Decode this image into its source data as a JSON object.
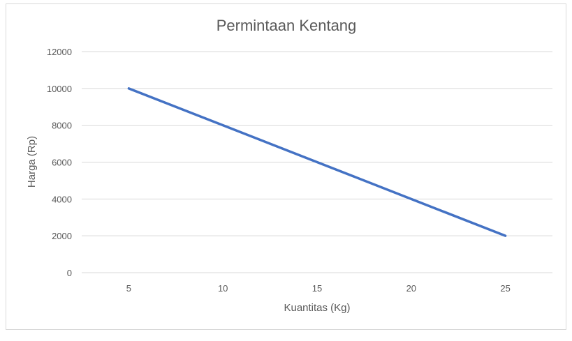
{
  "chart_data": {
    "type": "line",
    "title": "Permintaan Kentang",
    "xlabel": "Kuantitas (Kg)",
    "ylabel": "Harga (Rp)",
    "categories": [
      "5",
      "10",
      "15",
      "20",
      "25"
    ],
    "series": [
      {
        "values": [
          10000,
          8000,
          6000,
          4000,
          2000
        ]
      }
    ],
    "ylim": [
      0,
      12000
    ],
    "yticks": [
      "0",
      "2000",
      "4000",
      "6000",
      "8000",
      "10000",
      "12000"
    ],
    "grid": true,
    "legend": "none",
    "colors": {
      "line": "#4472c4",
      "grid": "#d9d9d9",
      "text": "#595959"
    }
  }
}
